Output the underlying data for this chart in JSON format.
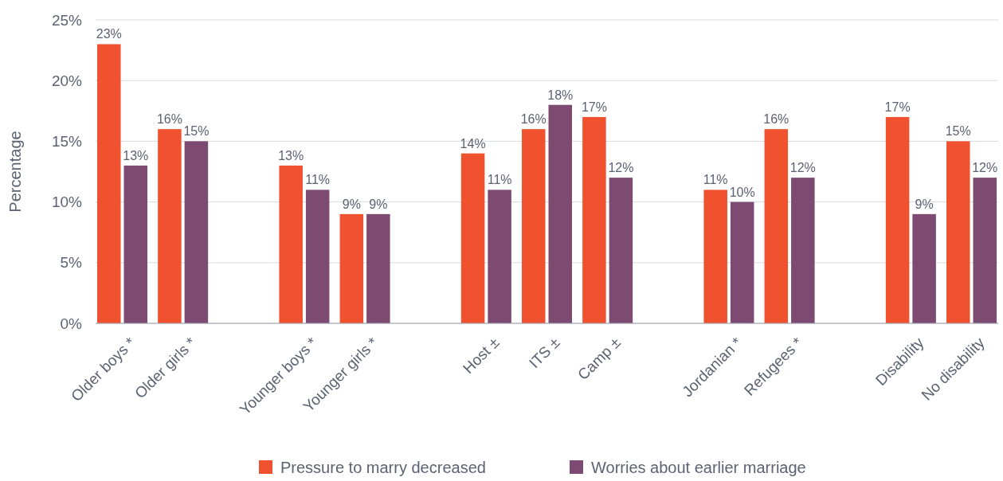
{
  "chart_data": {
    "type": "bar",
    "ylabel": "Percentage",
    "categories": [
      "Older boys *",
      "Older girls *",
      null,
      "Younger boys *",
      "Younger girls *",
      null,
      "Host ±",
      "ITS ±",
      "Camp ±",
      null,
      "Jordanian *",
      "Refugees *",
      null,
      "Disability",
      "No disability"
    ],
    "series": [
      {
        "name": "Pressure to marry decreased",
        "color": "#f0522f",
        "values": [
          23,
          16,
          null,
          13,
          9,
          null,
          14,
          16,
          17,
          null,
          11,
          16,
          null,
          17,
          15
        ],
        "value_labels": [
          "23%",
          "16%",
          null,
          "13%",
          "9%",
          null,
          "14%",
          "16%",
          "17%",
          null,
          "11%",
          "16%",
          null,
          "17%",
          "15%"
        ]
      },
      {
        "name": "Worries about earlier marriage",
        "color": "#7d4a72",
        "values": [
          13,
          15,
          null,
          11,
          9,
          null,
          11,
          18,
          12,
          null,
          10,
          12,
          null,
          9,
          12
        ],
        "value_labels": [
          "13%",
          "15%",
          null,
          "11%",
          "9%",
          null,
          "11%",
          "18%",
          "12%",
          null,
          "10%",
          "12%",
          null,
          "9%",
          "12%"
        ]
      }
    ],
    "ylim": [
      0,
      25
    ],
    "yticks": [
      {
        "value": 0,
        "label": "0%"
      },
      {
        "value": 5,
        "label": "5%"
      },
      {
        "value": 10,
        "label": "10%"
      },
      {
        "value": 15,
        "label": "15%"
      },
      {
        "value": 20,
        "label": "20%"
      },
      {
        "value": 25,
        "label": "25%"
      }
    ],
    "grid": "y",
    "legend": "bottom"
  }
}
